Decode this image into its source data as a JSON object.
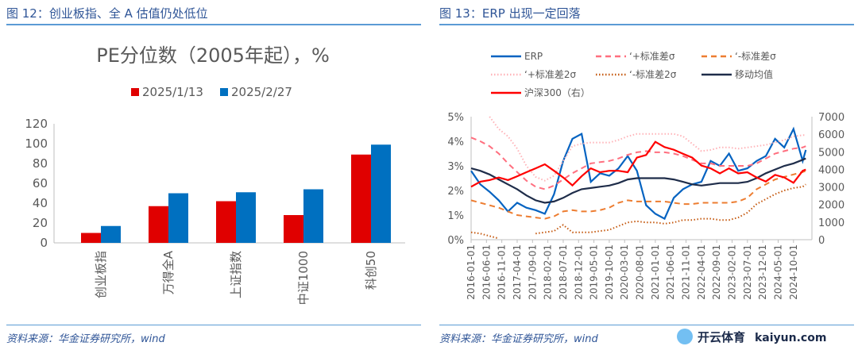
{
  "left": {
    "figure_title": "图 12：创业板指、全 A 估值仍处低位",
    "source": "资料来源：华金证券研究所，wind"
  },
  "right": {
    "figure_title": "图 13：ERP 出现一定回落",
    "source": "资料来源：华金证券研究所，wind"
  },
  "watermark": {
    "brand": "开云体育",
    "url": "kaiyun.com"
  },
  "chart_data": [
    {
      "type": "bar",
      "title": "PE分位数（2005年起），%",
      "categories": [
        "创业板指",
        "万得全A",
        "上证指数",
        "中证1000",
        "科创50"
      ],
      "series": [
        {
          "name": "2025/1/13",
          "color": "#e00000",
          "values": [
            10,
            37,
            42,
            28,
            89
          ]
        },
        {
          "name": "2025/2/27",
          "color": "#0070c0",
          "values": [
            17,
            50,
            51,
            54,
            99
          ]
        }
      ],
      "ylim": [
        0,
        120
      ],
      "yticks": [
        "0",
        "20",
        "40",
        "60",
        "80",
        "100",
        "120"
      ],
      "legend": "top",
      "grid": false
    },
    {
      "type": "line",
      "x": [
        "2016-01",
        "2016-04",
        "2016-07",
        "2016-10",
        "2017-01",
        "2017-04",
        "2017-07",
        "2017-10",
        "2018-01",
        "2018-04",
        "2018-07",
        "2018-10",
        "2019-01",
        "2019-04",
        "2019-07",
        "2019-10",
        "2020-01",
        "2020-04",
        "2020-07",
        "2020-10",
        "2021-01",
        "2021-04",
        "2021-07",
        "2021-10",
        "2022-01",
        "2022-04",
        "2022-07",
        "2022-10",
        "2023-01",
        "2023-04",
        "2023-07",
        "2023-10",
        "2024-01",
        "2024-04",
        "2024-07",
        "2024-10",
        "2025-01",
        "2025-02"
      ],
      "xticks": [
        "2016-01-01",
        "2016-06-01",
        "2016-11-01",
        "2017-04-01",
        "2017-09-01",
        "2018-02-01",
        "2018-07-01",
        "2018-12-01",
        "2019-05-01",
        "2019-10-01",
        "2020-03-01",
        "2020-08-01",
        "2021-01-01",
        "2021-06-01",
        "2021-11-01",
        "2022-04-01",
        "2022-09-01",
        "2023-02-01",
        "2023-07-01",
        "2023-12-01",
        "2024-05-01",
        "2024-10-01"
      ],
      "ylim": [
        0,
        5
      ],
      "yticks": [
        "0%",
        "1%",
        "2%",
        "3%",
        "4%",
        "5%"
      ],
      "y2lim": [
        0,
        7000
      ],
      "y2ticks": [
        "0",
        "1000",
        "2000",
        "3000",
        "4000",
        "5000",
        "6000",
        "7000"
      ],
      "legend": "top",
      "grid": false,
      "series": [
        {
          "name": "ERP",
          "axis": "left",
          "color": "#0563c1",
          "style": "solid",
          "values": [
            2.8,
            2.25,
            1.95,
            1.6,
            1.15,
            1.5,
            1.3,
            1.2,
            1.05,
            1.85,
            3.2,
            4.1,
            4.3,
            2.35,
            2.7,
            2.6,
            2.9,
            3.4,
            2.8,
            1.4,
            1.05,
            0.85,
            1.7,
            2.05,
            2.25,
            2.35,
            3.2,
            3.0,
            3.5,
            2.8,
            2.9,
            3.2,
            3.4,
            4.1,
            3.75,
            4.5,
            3.2,
            3.65
          ]
        },
        {
          "name": "‘+标准差σ",
          "axis": "left",
          "color": "#ff6f7f",
          "style": "dash",
          "values": [
            4.15,
            4.0,
            3.8,
            3.5,
            3.1,
            2.75,
            2.4,
            2.15,
            2.05,
            2.2,
            2.45,
            2.7,
            2.9,
            3.1,
            3.15,
            3.2,
            3.3,
            3.45,
            3.55,
            3.6,
            3.55,
            3.55,
            3.5,
            3.4,
            3.25,
            3.1,
            3.1,
            3.0,
            3.0,
            3.0,
            3.0,
            3.1,
            3.3,
            3.5,
            3.6,
            3.7,
            3.75,
            3.8
          ]
        },
        {
          "name": "‘-标准差σ",
          "axis": "left",
          "color": "#ed7d31",
          "style": "dash",
          "values": [
            1.6,
            1.5,
            1.4,
            1.3,
            1.15,
            1.0,
            0.95,
            0.9,
            0.85,
            0.95,
            1.15,
            1.2,
            1.15,
            1.15,
            1.2,
            1.3,
            1.5,
            1.6,
            1.55,
            1.55,
            1.55,
            1.55,
            1.5,
            1.45,
            1.45,
            1.5,
            1.5,
            1.5,
            1.5,
            1.55,
            1.7,
            2.05,
            2.25,
            2.45,
            2.55,
            2.65,
            2.75,
            2.8
          ]
        },
        {
          "name": "‘+标准差2σ",
          "axis": "left",
          "color": "#ffb3b8",
          "style": "dot",
          "values": [
            null,
            null,
            5.0,
            4.5,
            4.2,
            3.7,
            3.0,
            2.55,
            2.4,
            2.6,
            3.2,
            3.8,
            3.9,
            3.95,
            3.95,
            3.95,
            4.05,
            4.2,
            4.3,
            4.3,
            4.3,
            4.3,
            4.3,
            4.2,
            3.9,
            3.6,
            3.65,
            3.75,
            3.75,
            3.7,
            3.75,
            3.8,
            3.85,
            3.95,
            4.05,
            4.2,
            4.25,
            4.25
          ]
        },
        {
          "name": "‘-标准差2σ",
          "axis": "left",
          "color": "#c55a11",
          "style": "dot",
          "values": [
            0.3,
            0.25,
            0.15,
            0.05,
            null,
            null,
            null,
            0.25,
            0.3,
            0.35,
            0.6,
            0.3,
            0.3,
            0.3,
            0.35,
            0.4,
            0.55,
            0.7,
            0.75,
            0.7,
            0.7,
            0.65,
            0.7,
            0.8,
            0.8,
            0.85,
            0.85,
            0.8,
            0.8,
            0.9,
            1.1,
            1.45,
            1.65,
            1.85,
            2.0,
            2.1,
            2.15,
            2.25
          ]
        },
        {
          "name": "移动均值",
          "axis": "left",
          "color": "#1f2d4a",
          "style": "solid",
          "values": [
            2.9,
            2.8,
            2.65,
            2.45,
            2.25,
            2.05,
            1.8,
            1.6,
            1.5,
            1.55,
            1.7,
            1.9,
            2.05,
            2.1,
            2.15,
            2.2,
            2.3,
            2.45,
            2.5,
            2.5,
            2.5,
            2.5,
            2.45,
            2.35,
            2.25,
            2.2,
            2.25,
            2.3,
            2.3,
            2.3,
            2.35,
            2.5,
            2.7,
            2.85,
            3.0,
            3.1,
            3.25,
            3.3
          ]
        },
        {
          "name": "沪深300（右）",
          "axis": "right",
          "color": "#ff0000",
          "style": "solid",
          "values": [
            3010,
            3300,
            3390,
            3540,
            3390,
            3610,
            3840,
            4060,
            4290,
            3920,
            3540,
            3090,
            3610,
            4060,
            3840,
            3920,
            3920,
            3840,
            4670,
            4820,
            5570,
            5270,
            5120,
            4890,
            4670,
            4220,
            4060,
            3770,
            4060,
            3770,
            3840,
            3540,
            3310,
            3690,
            3540,
            3240,
            3920,
            3990
          ]
        }
      ]
    }
  ]
}
